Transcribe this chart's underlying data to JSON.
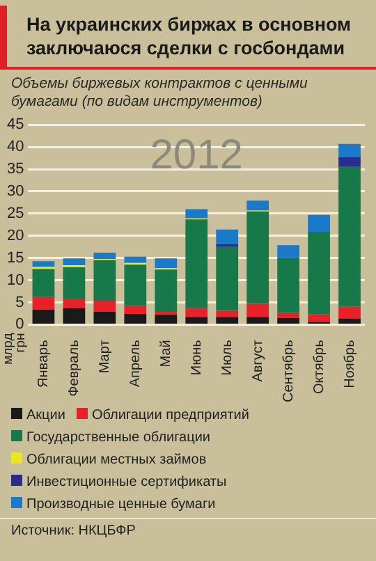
{
  "chart_data": {
    "type": "bar",
    "stacked": true,
    "title": "На украинских биржах в основном заключаюся сделки с госбондами",
    "subtitle": "Объемы биржевых контрактов с ценными бумагами (по видам инструментов)",
    "ylabel": "млрд грн",
    "categories": [
      "Январь",
      "Февраль",
      "Март",
      "Апрель",
      "Май",
      "Июнь",
      "Июль",
      "Август",
      "Сентябрь",
      "Октябрь",
      "Ноябрь"
    ],
    "series": [
      {
        "name": "Акции",
        "color": "#1a1a1a",
        "values": [
          3.4,
          3.7,
          2.9,
          2.4,
          2.2,
          1.7,
          1.7,
          1.7,
          1.5,
          0.6,
          1.4
        ]
      },
      {
        "name": "Облигации предприятий",
        "color": "#e8202a",
        "values": [
          2.8,
          2.0,
          2.5,
          1.8,
          0.7,
          2.0,
          1.4,
          3.0,
          1.2,
          1.7,
          2.6
        ]
      },
      {
        "name": "Государственные облигации",
        "color": "#17794a",
        "values": [
          6.3,
          7.2,
          9.1,
          9.3,
          9.5,
          20.0,
          14.4,
          20.8,
          12.3,
          18.6,
          31.5
        ]
      },
      {
        "name": "Облигации местных займов",
        "color": "#ece61e",
        "values": [
          0.5,
          0.5,
          0.3,
          0.4,
          0.3,
          0.2,
          0,
          0.2,
          0,
          0,
          0
        ]
      },
      {
        "name": "Инвестиционные сертификаты",
        "color": "#2b2d8c",
        "values": [
          0,
          0,
          0,
          0,
          0,
          0,
          0.6,
          0,
          0,
          0,
          2.2
        ]
      },
      {
        "name": "Производные ценные бумаги",
        "color": "#1b79c9",
        "values": [
          1.3,
          1.5,
          1.4,
          1.4,
          2.2,
          2.1,
          3.3,
          2.2,
          2.9,
          3.8,
          3.0
        ]
      }
    ],
    "ylim": [
      0,
      45
    ],
    "yticks": [
      0,
      5,
      10,
      15,
      20,
      25,
      30,
      35,
      40,
      45
    ],
    "grid": "y",
    "legend": "bottom",
    "annotations": [
      "2012",
      "Источник: НКЦБФР"
    ]
  }
}
